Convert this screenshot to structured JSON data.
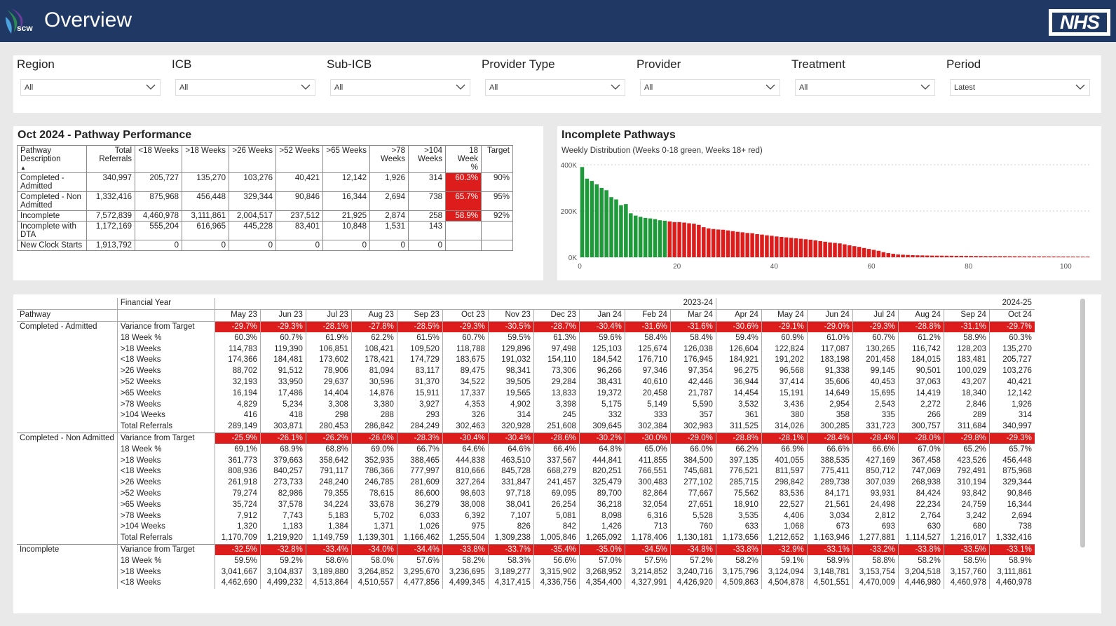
{
  "header": {
    "title": "Overview",
    "logo_text": "scw",
    "nhs_logo": "NHS"
  },
  "filters": [
    {
      "label": "Region",
      "value": "All"
    },
    {
      "label": "ICB",
      "value": "All"
    },
    {
      "label": "Sub-ICB",
      "value": "All"
    },
    {
      "label": "Provider Type",
      "value": "All"
    },
    {
      "label": "Provider",
      "value": "All"
    },
    {
      "label": "Treatment",
      "value": "All"
    },
    {
      "label": "Period",
      "value": "Latest"
    }
  ],
  "perf": {
    "title": "Oct 2024 - Pathway Performance",
    "headers": [
      "Pathway Description",
      "Total Referrals",
      "<18 Weeks",
      ">18 Weeks",
      ">26 Weeks",
      ">52 Weeks",
      ">65 Weeks",
      ">78 Weeks",
      ">104 Weeks",
      "18 Week %",
      "Target"
    ],
    "rows": [
      {
        "name": "Completed - Admitted",
        "vals": [
          "340,997",
          "205,727",
          "135,270",
          "103,276",
          "40,421",
          "12,142",
          "1,926",
          "314"
        ],
        "pct": "60.3%",
        "target": "90%"
      },
      {
        "name": "Completed - Non Admitted",
        "vals": [
          "1,332,416",
          "875,968",
          "456,448",
          "329,344",
          "90,846",
          "16,344",
          "2,694",
          "738"
        ],
        "pct": "65.7%",
        "target": "95%"
      },
      {
        "name": "Incomplete",
        "vals": [
          "7,572,839",
          "4,460,978",
          "3,111,861",
          "2,004,517",
          "237,512",
          "21,925",
          "2,874",
          "258"
        ],
        "pct": "58.9%",
        "target": "92%"
      },
      {
        "name": "Incomplete with DTA",
        "vals": [
          "1,172,169",
          "555,204",
          "616,965",
          "445,228",
          "83,401",
          "10,848",
          "1,531",
          "143"
        ],
        "pct": "",
        "target": ""
      },
      {
        "name": "New Clock Starts",
        "vals": [
          "1,913,792",
          "0",
          "0",
          "0",
          "0",
          "0",
          "0",
          "0"
        ],
        "pct": "",
        "target": ""
      }
    ]
  },
  "chart_data": {
    "type": "bar",
    "title": "Incomplete Pathways",
    "subtitle": "Weekly Distribution (Weeks 0-18 green, Weeks 18+ red)",
    "xlim": [
      0,
      105
    ],
    "ylim": [
      0,
      400000
    ],
    "x_ticks": [
      "0",
      "20",
      "40",
      "60",
      "80",
      "100"
    ],
    "y_ticks": [
      "0K",
      "200K",
      "400K"
    ],
    "colors": {
      "under18": "#1f9a3a",
      "over18": "#dd1c1c"
    },
    "series": [
      {
        "values": [
          390000,
          340000,
          330000,
          315000,
          300000,
          290000,
          260000,
          250000,
          225000,
          230000,
          190000,
          180000,
          175000,
          170000,
          168000,
          165000,
          160000,
          158000,
          155000,
          152000,
          152000,
          150000,
          147000,
          145000,
          140000,
          130000,
          125000,
          122000,
          120000,
          119000,
          116000,
          113000,
          110000,
          108000,
          105000,
          104000,
          100000,
          98000,
          95000,
          93000,
          90000,
          88000,
          86000,
          84000,
          82000,
          80000,
          78000,
          76000,
          73000,
          70000,
          67000,
          64000,
          62000,
          60000,
          56000,
          52000,
          48000,
          45000,
          40000,
          36000,
          32000,
          28000,
          22000,
          18000,
          15000,
          12000,
          11000,
          10000,
          9000,
          8500,
          8000,
          7500,
          7200,
          7000,
          6800,
          6600,
          6400,
          6200,
          6000,
          5800,
          5600,
          5400,
          5200,
          5000,
          4900,
          4800,
          4700,
          4600,
          4500,
          4400,
          4300,
          4200,
          4100,
          4000,
          3900,
          3800,
          3700,
          3600,
          3500,
          3400,
          3300,
          3200,
          3100,
          3000,
          2900
        ]
      }
    ]
  },
  "detail": {
    "fy_label": "Financial Year",
    "fy_2324": "2023-24",
    "fy_2425": "2024-25",
    "pathway_label": "Pathway",
    "months": [
      "May 23",
      "Jun 23",
      "Jul 23",
      "Aug 23",
      "Sep 23",
      "Oct 23",
      "Nov 23",
      "Dec 23",
      "Jan 24",
      "Feb 24",
      "Mar 24",
      "Apr 24",
      "May 24",
      "Jun 24",
      "Jul 24",
      "Aug 24",
      "Sep 24",
      "Oct 24"
    ],
    "groups": [
      {
        "name": "Completed - Admitted",
        "rows": [
          {
            "label": "Variance from Target",
            "red": true,
            "vals": [
              "-29.7%",
              "-29.3%",
              "-28.1%",
              "-27.8%",
              "-28.5%",
              "-29.3%",
              "-30.5%",
              "-28.7%",
              "-30.4%",
              "-31.6%",
              "-31.6%",
              "-30.6%",
              "-29.1%",
              "-29.0%",
              "-29.3%",
              "-28.8%",
              "-31.1%",
              "-29.7%"
            ]
          },
          {
            "label": "18 Week %",
            "vals": [
              "60.3%",
              "60.7%",
              "61.9%",
              "62.2%",
              "61.5%",
              "60.7%",
              "59.5%",
              "61.3%",
              "59.6%",
              "58.4%",
              "58.4%",
              "59.4%",
              "60.9%",
              "61.0%",
              "60.7%",
              "61.2%",
              "58.9%",
              "60.3%"
            ]
          },
          {
            "label": ">18 Weeks",
            "vals": [
              "114,783",
              "119,390",
              "106,851",
              "108,421",
              "109,520",
              "118,788",
              "129,896",
              "97,498",
              "125,103",
              "125,674",
              "126,038",
              "126,604",
              "122,824",
              "117,087",
              "130,265",
              "116,742",
              "128,203",
              "135,270"
            ]
          },
          {
            "label": "<18 Weeks",
            "vals": [
              "174,366",
              "184,481",
              "173,602",
              "178,421",
              "174,729",
              "183,675",
              "191,032",
              "154,110",
              "184,542",
              "176,710",
              "176,945",
              "184,921",
              "191,202",
              "183,198",
              "201,458",
              "184,015",
              "183,481",
              "205,727"
            ]
          },
          {
            "label": ">26 Weeks",
            "vals": [
              "88,702",
              "91,512",
              "78,906",
              "81,094",
              "83,117",
              "89,475",
              "98,341",
              "73,306",
              "96,266",
              "97,346",
              "97,354",
              "96,275",
              "96,568",
              "91,338",
              "99,145",
              "90,501",
              "100,029",
              "103,276"
            ]
          },
          {
            "label": ">52 Weeks",
            "vals": [
              "32,193",
              "33,950",
              "29,637",
              "30,596",
              "31,370",
              "34,522",
              "39,505",
              "29,284",
              "38,431",
              "40,610",
              "42,446",
              "36,944",
              "37,414",
              "35,606",
              "40,453",
              "37,063",
              "43,207",
              "40,421"
            ]
          },
          {
            "label": ">65 Weeks",
            "vals": [
              "16,194",
              "17,486",
              "14,404",
              "14,876",
              "15,911",
              "17,337",
              "19,565",
              "13,833",
              "19,372",
              "20,458",
              "21,787",
              "14,454",
              "15,191",
              "14,649",
              "15,695",
              "14,419",
              "18,340",
              "12,142"
            ]
          },
          {
            "label": ">78 Weeks",
            "vals": [
              "4,829",
              "5,234",
              "3,308",
              "3,380",
              "3,927",
              "4,353",
              "4,902",
              "3,398",
              "5,175",
              "5,149",
              "5,590",
              "3,532",
              "3,436",
              "2,954",
              "2,543",
              "2,272",
              "2,846",
              "1,926"
            ]
          },
          {
            "label": ">104 Weeks",
            "vals": [
              "416",
              "418",
              "298",
              "288",
              "293",
              "326",
              "314",
              "245",
              "332",
              "333",
              "357",
              "361",
              "380",
              "358",
              "335",
              "266",
              "289",
              "314"
            ]
          },
          {
            "label": "Total Referrals",
            "vals": [
              "289,149",
              "303,871",
              "280,453",
              "286,842",
              "284,249",
              "302,463",
              "320,928",
              "251,608",
              "309,645",
              "302,384",
              "302,983",
              "311,525",
              "314,026",
              "300,285",
              "331,723",
              "300,757",
              "311,684",
              "340,997"
            ]
          }
        ]
      },
      {
        "name": "Completed - Non Admitted",
        "rows": [
          {
            "label": "Variance from Target",
            "red": true,
            "vals": [
              "-25.9%",
              "-26.1%",
              "-26.2%",
              "-26.0%",
              "-28.3%",
              "-30.4%",
              "-30.4%",
              "-28.6%",
              "-30.2%",
              "-30.0%",
              "-29.0%",
              "-28.8%",
              "-28.1%",
              "-28.4%",
              "-28.4%",
              "-28.0%",
              "-29.8%",
              "-29.3%"
            ]
          },
          {
            "label": "18 Week %",
            "vals": [
              "69.1%",
              "68.9%",
              "68.8%",
              "69.0%",
              "66.7%",
              "64.6%",
              "64.6%",
              "66.4%",
              "64.8%",
              "65.0%",
              "66.0%",
              "66.2%",
              "66.9%",
              "66.6%",
              "66.6%",
              "67.0%",
              "65.2%",
              "65.7%"
            ]
          },
          {
            "label": ">18 Weeks",
            "vals": [
              "361,773",
              "379,663",
              "358,642",
              "352,935",
              "388,465",
              "444,838",
              "463,510",
              "337,567",
              "444,841",
              "411,855",
              "384,500",
              "397,135",
              "401,055",
              "388,535",
              "427,169",
              "367,458",
              "423,526",
              "456,448"
            ]
          },
          {
            "label": "<18 Weeks",
            "vals": [
              "808,936",
              "840,257",
              "791,117",
              "786,366",
              "777,997",
              "810,666",
              "845,728",
              "668,279",
              "820,251",
              "766,551",
              "745,681",
              "776,521",
              "811,597",
              "775,411",
              "850,712",
              "747,069",
              "792,491",
              "875,968"
            ]
          },
          {
            "label": ">26 Weeks",
            "vals": [
              "261,918",
              "273,733",
              "248,240",
              "246,785",
              "281,609",
              "327,264",
              "331,847",
              "241,457",
              "325,479",
              "300,483",
              "277,102",
              "285,715",
              "298,842",
              "289,738",
              "307,039",
              "268,938",
              "310,194",
              "329,344"
            ]
          },
          {
            "label": ">52 Weeks",
            "vals": [
              "79,274",
              "82,986",
              "79,355",
              "78,615",
              "86,600",
              "98,603",
              "97,718",
              "69,095",
              "89,700",
              "82,864",
              "77,667",
              "75,562",
              "83,536",
              "84,171",
              "93,931",
              "84,424",
              "93,842",
              "90,846"
            ]
          },
          {
            "label": ">65 Weeks",
            "vals": [
              "35,724",
              "37,578",
              "34,224",
              "33,678",
              "36,279",
              "38,008",
              "38,041",
              "26,254",
              "36,218",
              "32,054",
              "27,651",
              "18,910",
              "22,527",
              "21,561",
              "24,498",
              "22,234",
              "24,759",
              "16,344"
            ]
          },
          {
            "label": ">78 Weeks",
            "vals": [
              "7,912",
              "7,743",
              "5,183",
              "5,702",
              "6,033",
              "6,392",
              "7,107",
              "5,081",
              "8,098",
              "6,316",
              "5,528",
              "3,535",
              "4,406",
              "3,034",
              "2,812",
              "2,764",
              "3,242",
              "2,694"
            ]
          },
          {
            "label": ">104 Weeks",
            "vals": [
              "1,320",
              "1,183",
              "1,384",
              "1,371",
              "1,026",
              "975",
              "826",
              "842",
              "1,426",
              "713",
              "760",
              "633",
              "1,068",
              "673",
              "693",
              "630",
              "680",
              "738"
            ]
          },
          {
            "label": "Total Referrals",
            "vals": [
              "1,170,709",
              "1,219,920",
              "1,149,759",
              "1,139,301",
              "1,166,462",
              "1,255,504",
              "1,309,238",
              "1,005,846",
              "1,265,092",
              "1,178,406",
              "1,130,181",
              "1,173,656",
              "1,212,652",
              "1,163,946",
              "1,277,881",
              "1,114,527",
              "1,216,017",
              "1,332,416"
            ]
          }
        ]
      },
      {
        "name": "Incomplete",
        "rows": [
          {
            "label": "Variance from Target",
            "red": true,
            "vals": [
              "-32.5%",
              "-32.8%",
              "-33.4%",
              "-34.0%",
              "-34.4%",
              "-33.8%",
              "-33.7%",
              "-35.4%",
              "-35.0%",
              "-34.5%",
              "-34.8%",
              "-33.8%",
              "-32.9%",
              "-33.1%",
              "-33.2%",
              "-33.8%",
              "-33.5%",
              "-33.1%"
            ]
          },
          {
            "label": "18 Week %",
            "vals": [
              "59.5%",
              "59.2%",
              "58.6%",
              "58.0%",
              "57.6%",
              "58.2%",
              "58.3%",
              "56.6%",
              "57.0%",
              "57.5%",
              "57.2%",
              "58.2%",
              "59.1%",
              "58.9%",
              "58.8%",
              "58.2%",
              "58.5%",
              "58.9%"
            ]
          },
          {
            "label": ">18 Weeks",
            "vals": [
              "3,041,667",
              "3,104,837",
              "3,189,880",
              "3,264,852",
              "3,295,670",
              "3,236,695",
              "3,189,277",
              "3,315,902",
              "3,268,952",
              "3,214,852",
              "3,240,716",
              "3,175,796",
              "3,124,094",
              "3,148,781",
              "3,153,754",
              "3,204,518",
              "3,157,760",
              "3,111,861"
            ]
          },
          {
            "label": "<18 Weeks",
            "vals": [
              "4,462,690",
              "4,499,232",
              "4,513,864",
              "4,510,557",
              "4,477,856",
              "4,499,345",
              "4,317,415",
              "4,336,756",
              "4,354,400",
              "4,327,991",
              "4,426,920",
              "4,509,863",
              "4,504,878",
              "4,501,551",
              "4,470,009",
              "4,446,980",
              "4,460,978",
              "4,460,978"
            ]
          }
        ]
      }
    ]
  }
}
